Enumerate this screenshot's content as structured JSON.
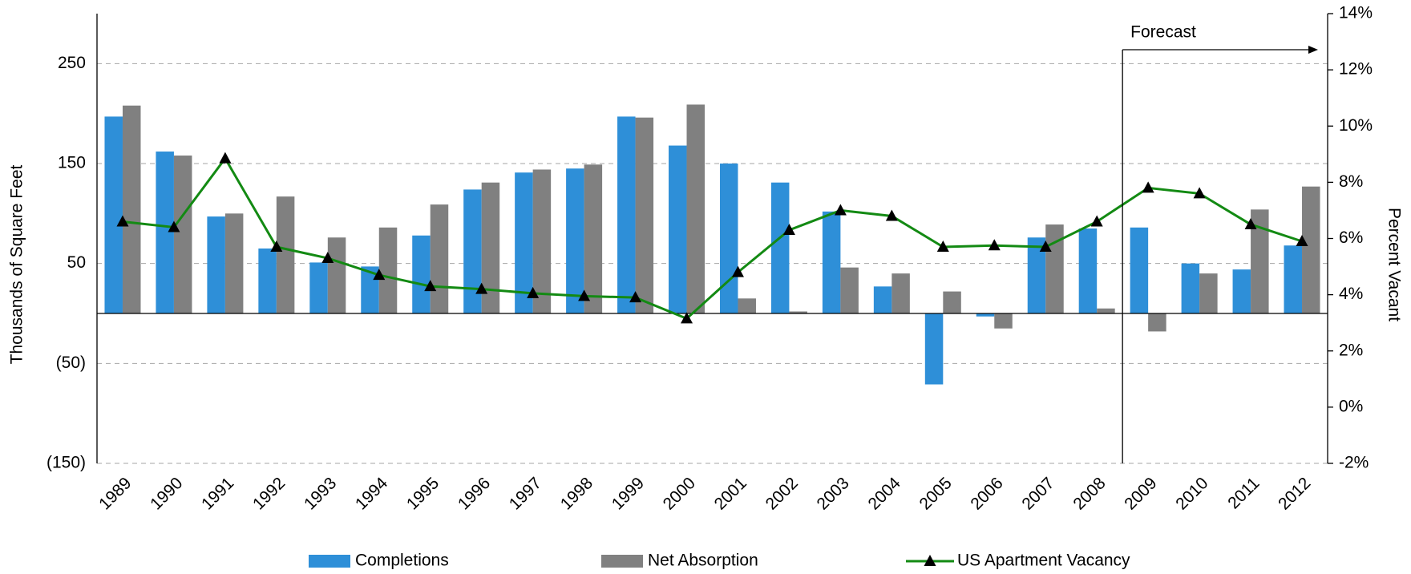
{
  "chart_data": {
    "type": "bar",
    "y_label": "Thousands of Square Feet",
    "y2_label": "Percent Vacant",
    "categories": [
      "1989",
      "1990",
      "1991",
      "1992",
      "1993",
      "1994",
      "1995",
      "1996",
      "1997",
      "1998",
      "1999",
      "2000",
      "2001",
      "2002",
      "2003",
      "2004",
      "2005",
      "2006",
      "2007",
      "2008",
      "2009",
      "2010",
      "2011",
      "2012"
    ],
    "series": [
      {
        "name": "Completions",
        "type": "bar",
        "color": "#2e8fd8",
        "values": [
          197,
          162,
          97,
          65,
          51,
          47,
          78,
          124,
          141,
          145,
          197,
          168,
          150,
          131,
          102,
          27,
          -71,
          -3,
          76,
          85,
          86,
          50,
          44,
          68
        ]
      },
      {
        "name": "Net Absorption",
        "type": "bar",
        "color": "#808080",
        "values": [
          208,
          158,
          100,
          117,
          76,
          86,
          109,
          131,
          144,
          149,
          196,
          209,
          15,
          2,
          46,
          40,
          22,
          -15,
          89,
          5,
          -18,
          40,
          104,
          127
        ]
      },
      {
        "name": "US Apartment Vacancy",
        "type": "line",
        "axis": "y2",
        "color": "#138a13",
        "values": [
          6.6,
          6.4,
          8.85,
          5.7,
          5.3,
          4.7,
          4.3,
          4.2,
          4.05,
          3.95,
          3.9,
          3.15,
          4.8,
          6.3,
          7.0,
          6.8,
          5.7,
          5.75,
          5.7,
          6.6,
          7.8,
          7.6,
          6.5,
          5.9
        ]
      }
    ],
    "ylim": [
      -150,
      300
    ],
    "yticks": [
      {
        "value": -150,
        "label": "(150)"
      },
      {
        "value": -50,
        "label": "(50)"
      },
      50,
      150,
      250
    ],
    "y2lim": [
      -2,
      14
    ],
    "y2ticks": [
      {
        "value": -2,
        "label": "-2%"
      },
      {
        "value": 0,
        "label": "0%"
      },
      {
        "value": 2,
        "label": "2%"
      },
      {
        "value": 4,
        "label": "4%"
      },
      {
        "value": 6,
        "label": "6%"
      },
      {
        "value": 8,
        "label": "8%"
      },
      {
        "value": 10,
        "label": "10%"
      },
      {
        "value": 12,
        "label": "12%"
      },
      {
        "value": 14,
        "label": "14%"
      }
    ],
    "grid": true,
    "legend": "bottom",
    "annotations": [
      {
        "text": "Forecast",
        "x": "2009"
      }
    ]
  }
}
